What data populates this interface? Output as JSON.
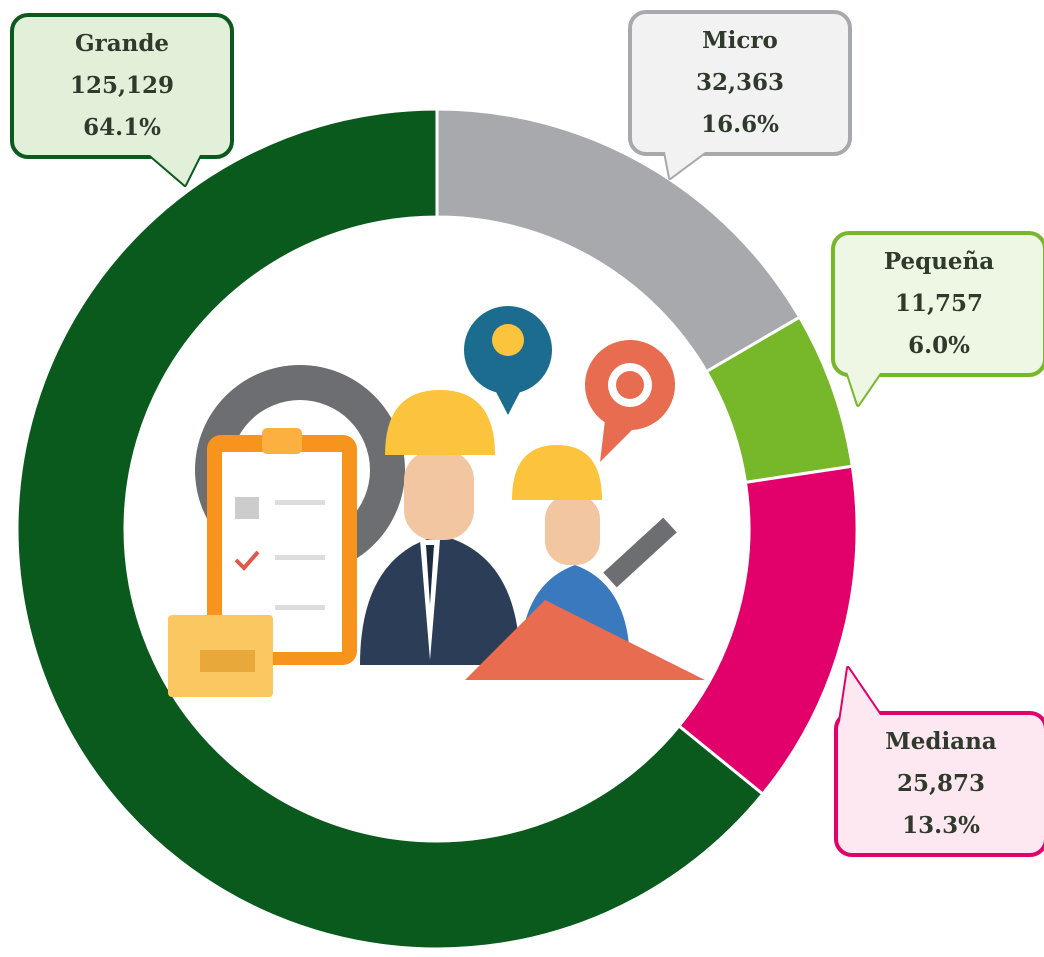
{
  "chart_data": {
    "type": "donut",
    "categories": [
      "Micro",
      "Pequeña",
      "Mediana",
      "Grande"
    ],
    "values": [
      32363,
      11757,
      25873,
      125129
    ],
    "value_labels": [
      "32,363",
      "11,757",
      "25,873",
      "125,129"
    ],
    "percentages": [
      16.6,
      6.0,
      13.3,
      64.1
    ],
    "percentage_labels": [
      "16.6%",
      "6.0%",
      "13.3%",
      "64.1%"
    ],
    "colors": [
      "#a7a9ac",
      "#76b82a",
      "#e2006a",
      "#0a5a1e"
    ]
  }
}
